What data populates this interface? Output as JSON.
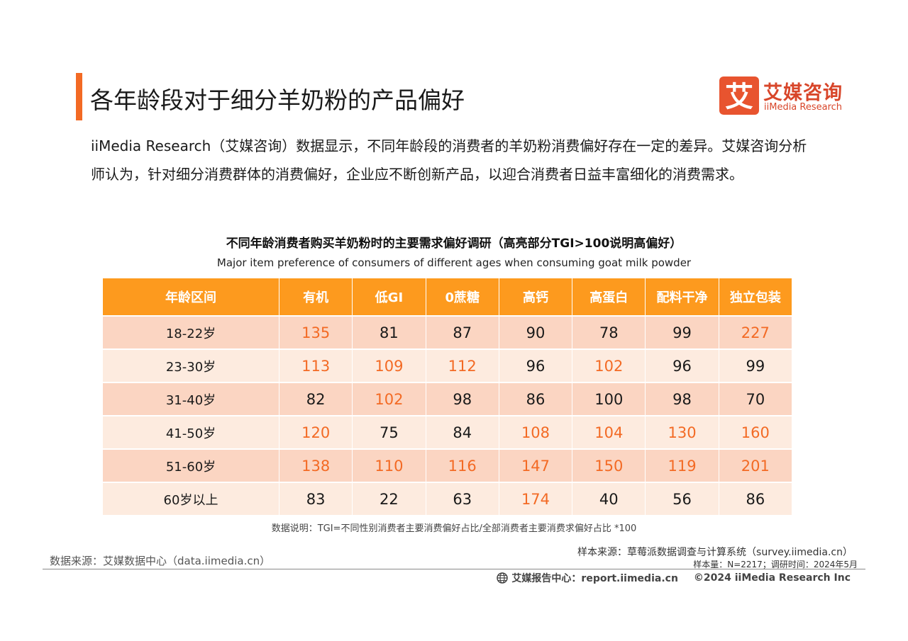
{
  "header": {
    "title": "各年龄段对于细分羊奶粉的产品偏好",
    "logo_mark": "艾",
    "brand_cn": "艾媒咨询",
    "brand_en": "iiMedia Research",
    "accent_color": "#f36a24"
  },
  "intro": {
    "paragraph": "iiMedia Research（艾媒咨询）数据显示，不同年龄段的消费者的羊奶粉消费偏好存在一定的差异。艾媒咨询分析师认为，针对细分消费群体的消费偏好，企业应不断创新产品，以迎合消费者日益丰富细化的消费需求。"
  },
  "table": {
    "title": "不同年龄消费者购买羊奶粉时的主要需求偏好调研（高亮部分TGI>100说明高偏好）",
    "subtitle": "Major item preference of consumers of different ages when consuming goat milk powder",
    "headers": [
      "年龄区间",
      "有机",
      "低GI",
      "0蔗糖",
      "高钙",
      "高蛋白",
      "配料干净",
      "独立包装"
    ],
    "header_color": "#fd9a1e",
    "highlight_color": "#f36a24",
    "highlight_threshold": 100,
    "rows": [
      {
        "age": "18-22岁",
        "values": [
          135,
          81,
          87,
          90,
          78,
          99,
          227
        ]
      },
      {
        "age": "23-30岁",
        "values": [
          113,
          109,
          112,
          96,
          102,
          96,
          99
        ]
      },
      {
        "age": "31-40岁",
        "values": [
          82,
          102,
          98,
          86,
          100,
          98,
          70
        ]
      },
      {
        "age": "41-50岁",
        "values": [
          120,
          75,
          84,
          108,
          104,
          130,
          160
        ]
      },
      {
        "age": "51-60岁",
        "values": [
          138,
          110,
          116,
          147,
          150,
          119,
          201
        ]
      },
      {
        "age": "60岁以上",
        "values": [
          83,
          22,
          63,
          174,
          40,
          56,
          86
        ]
      }
    ],
    "note": "数据说明：TGI=不同性别消费者主要消费偏好占比/全部消费者主要消费求偏好占比 *100"
  },
  "sources": {
    "left": "数据来源：艾媒数据中心（data.iimedia.cn）",
    "sample_source": "样本来源：草莓派数据调查与计算系统（survey.iimedia.cn）",
    "sample_info": "样本量：N=2217；调研时间：2024年5月"
  },
  "footer": {
    "report_center": "艾媒报告中心：report.iimedia.cn",
    "copyright": "©2024  iiMedia Research  Inc"
  }
}
